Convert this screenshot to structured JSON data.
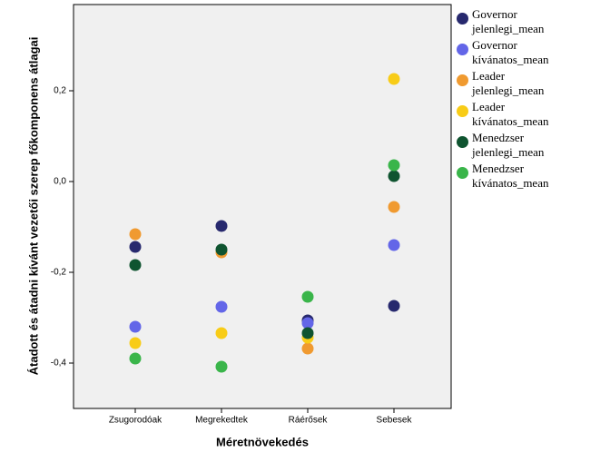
{
  "chart_data": {
    "type": "scatter",
    "x_label": "Méretnövekedés",
    "y_label": "Átadott és átadni kívánt vezetői szerep főkomponens átlagai",
    "categories": [
      "Zsugorodóak",
      "Megrekedtek",
      "Ráérősek",
      "Sebesek"
    ],
    "ylim": [
      -0.5,
      0.39
    ],
    "yticks": [
      {
        "value": -0.4,
        "label": "-0,4"
      },
      {
        "value": -0.2,
        "label": "-0,2"
      },
      {
        "value": 0,
        "label": "0,0"
      },
      {
        "value": 0.2,
        "label": "0,2"
      }
    ],
    "series": [
      {
        "name": "Governor jelenlegi_mean",
        "color": "#27296e",
        "values": [
          -0.144,
          -0.098,
          -0.306,
          -0.274
        ]
      },
      {
        "name": "Governor kívánatos_mean",
        "color": "#6366e8",
        "values": [
          -0.32,
          -0.276,
          -0.312,
          -0.14
        ]
      },
      {
        "name": "Leader jelenlegi_mean",
        "color": "#f09a30",
        "values": [
          -0.116,
          -0.156,
          -0.368,
          -0.056
        ]
      },
      {
        "name": "Leader kívánatos_mean",
        "color": "#f8cc17",
        "values": [
          -0.356,
          -0.334,
          -0.344,
          0.226
        ]
      },
      {
        "name": "Menedzser jelenlegi_mean",
        "color": "#0f5430",
        "values": [
          -0.184,
          -0.15,
          -0.334,
          0.012
        ]
      },
      {
        "name": "Menedzser kívánatos_mean",
        "color": "#3ab54a",
        "values": [
          -0.39,
          -0.408,
          -0.254,
          0.036
        ]
      }
    ]
  }
}
